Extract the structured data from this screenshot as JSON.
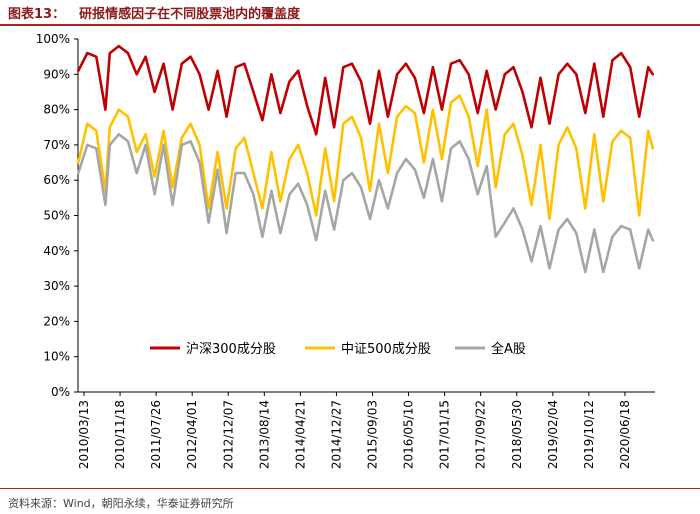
{
  "figure": {
    "label": "图表13：",
    "title": "研报情感因子在不同股票池内的覆盖度",
    "source": "资料来源：Wind，朝阳永续，华泰证券研究所"
  },
  "colors": {
    "hs300": "#C00000",
    "zz500": "#FFC000",
    "all": "#A6A6A6",
    "title": "#8B1A1A",
    "rule": "#B22222"
  },
  "chart_data": {
    "type": "line",
    "title": "研报情感因子在不同股票池内的覆盖度",
    "xlabel": "",
    "ylabel": "",
    "ylim": [
      0,
      100
    ],
    "yticks": [
      "0%",
      "10%",
      "20%",
      "30%",
      "40%",
      "50%",
      "60%",
      "70%",
      "80%",
      "90%",
      "100%"
    ],
    "xticks": [
      "2010/03/13",
      "2010/11/18",
      "2011/07/26",
      "2012/04/01",
      "2012/12/07",
      "2013/08/14",
      "2014/04/21",
      "2014/12/27",
      "2015/09/03",
      "2016/05/10",
      "2017/01/15",
      "2017/09/22",
      "2018/05/30",
      "2019/02/04",
      "2019/10/12",
      "2020/06/18"
    ],
    "legend_position": "bottom-center",
    "grid": false,
    "x_range": [
      "2010/03/13",
      "2020/11/30"
    ],
    "series": [
      {
        "name": "沪深300成分股",
        "points": [
          [
            "2010/03",
            91
          ],
          [
            "2010/05",
            96
          ],
          [
            "2010/07",
            95
          ],
          [
            "2010/09",
            80
          ],
          [
            "2010/10",
            96
          ],
          [
            "2010/12",
            98
          ],
          [
            "2011/02",
            96
          ],
          [
            "2011/04",
            90
          ],
          [
            "2011/06",
            95
          ],
          [
            "2011/08",
            85
          ],
          [
            "2011/10",
            93
          ],
          [
            "2011/12",
            80
          ],
          [
            "2012/02",
            93
          ],
          [
            "2012/04",
            95
          ],
          [
            "2012/06",
            90
          ],
          [
            "2012/08",
            80
          ],
          [
            "2012/10",
            91
          ],
          [
            "2012/12",
            78
          ],
          [
            "2013/02",
            92
          ],
          [
            "2013/04",
            93
          ],
          [
            "2013/06",
            85
          ],
          [
            "2013/08",
            77
          ],
          [
            "2013/10",
            90
          ],
          [
            "2013/12",
            79
          ],
          [
            "2014/02",
            88
          ],
          [
            "2014/04",
            91
          ],
          [
            "2014/06",
            81
          ],
          [
            "2014/08",
            73
          ],
          [
            "2014/10",
            89
          ],
          [
            "2014/12",
            75
          ],
          [
            "2015/02",
            92
          ],
          [
            "2015/04",
            93
          ],
          [
            "2015/06",
            88
          ],
          [
            "2015/08",
            76
          ],
          [
            "2015/10",
            91
          ],
          [
            "2015/12",
            78
          ],
          [
            "2016/02",
            90
          ],
          [
            "2016/04",
            93
          ],
          [
            "2016/06",
            89
          ],
          [
            "2016/08",
            79
          ],
          [
            "2016/10",
            92
          ],
          [
            "2016/12",
            80
          ],
          [
            "2017/02",
            93
          ],
          [
            "2017/04",
            94
          ],
          [
            "2017/06",
            90
          ],
          [
            "2017/08",
            79
          ],
          [
            "2017/10",
            91
          ],
          [
            "2017/12",
            80
          ],
          [
            "2018/02",
            90
          ],
          [
            "2018/04",
            92
          ],
          [
            "2018/06",
            85
          ],
          [
            "2018/08",
            75
          ],
          [
            "2018/10",
            89
          ],
          [
            "2018/12",
            76
          ],
          [
            "2019/02",
            90
          ],
          [
            "2019/04",
            93
          ],
          [
            "2019/06",
            90
          ],
          [
            "2019/08",
            79
          ],
          [
            "2019/10",
            93
          ],
          [
            "2019/12",
            78
          ],
          [
            "2020/02",
            94
          ],
          [
            "2020/04",
            96
          ],
          [
            "2020/06",
            92
          ],
          [
            "2020/08",
            78
          ],
          [
            "2020/10",
            92
          ],
          [
            "2020/11",
            90
          ]
        ]
      },
      {
        "name": "中证500成分股",
        "points": [
          [
            "2010/03",
            65
          ],
          [
            "2010/05",
            76
          ],
          [
            "2010/07",
            74
          ],
          [
            "2010/09",
            57
          ],
          [
            "2010/10",
            75
          ],
          [
            "2010/12",
            80
          ],
          [
            "2011/02",
            78
          ],
          [
            "2011/04",
            68
          ],
          [
            "2011/06",
            73
          ],
          [
            "2011/08",
            61
          ],
          [
            "2011/10",
            74
          ],
          [
            "2011/12",
            58
          ],
          [
            "2012/02",
            72
          ],
          [
            "2012/04",
            76
          ],
          [
            "2012/06",
            70
          ],
          [
            "2012/08",
            52
          ],
          [
            "2012/10",
            68
          ],
          [
            "2012/12",
            52
          ],
          [
            "2013/02",
            69
          ],
          [
            "2013/04",
            72
          ],
          [
            "2013/06",
            62
          ],
          [
            "2013/08",
            52
          ],
          [
            "2013/10",
            68
          ],
          [
            "2013/12",
            54
          ],
          [
            "2014/02",
            66
          ],
          [
            "2014/04",
            70
          ],
          [
            "2014/06",
            62
          ],
          [
            "2014/08",
            50
          ],
          [
            "2014/10",
            69
          ],
          [
            "2014/12",
            54
          ],
          [
            "2015/02",
            76
          ],
          [
            "2015/04",
            78
          ],
          [
            "2015/06",
            72
          ],
          [
            "2015/08",
            57
          ],
          [
            "2015/10",
            76
          ],
          [
            "2015/12",
            62
          ],
          [
            "2016/02",
            78
          ],
          [
            "2016/04",
            81
          ],
          [
            "2016/06",
            79
          ],
          [
            "2016/08",
            65
          ],
          [
            "2016/10",
            80
          ],
          [
            "2016/12",
            66
          ],
          [
            "2017/02",
            82
          ],
          [
            "2017/04",
            84
          ],
          [
            "2017/06",
            78
          ],
          [
            "2017/08",
            64
          ],
          [
            "2017/10",
            80
          ],
          [
            "2017/12",
            58
          ],
          [
            "2018/02",
            73
          ],
          [
            "2018/04",
            76
          ],
          [
            "2018/06",
            67
          ],
          [
            "2018/08",
            53
          ],
          [
            "2018/10",
            70
          ],
          [
            "2018/12",
            49
          ],
          [
            "2019/02",
            70
          ],
          [
            "2019/04",
            75
          ],
          [
            "2019/06",
            69
          ],
          [
            "2019/08",
            52
          ],
          [
            "2019/10",
            73
          ],
          [
            "2019/12",
            54
          ],
          [
            "2020/02",
            71
          ],
          [
            "2020/04",
            74
          ],
          [
            "2020/06",
            72
          ],
          [
            "2020/08",
            50
          ],
          [
            "2020/10",
            74
          ],
          [
            "2020/11",
            69
          ]
        ]
      },
      {
        "name": "全A股",
        "points": [
          [
            "2010/03",
            62
          ],
          [
            "2010/05",
            70
          ],
          [
            "2010/07",
            69
          ],
          [
            "2010/09",
            53
          ],
          [
            "2010/10",
            70
          ],
          [
            "2010/12",
            73
          ],
          [
            "2011/02",
            71
          ],
          [
            "2011/04",
            62
          ],
          [
            "2011/06",
            70
          ],
          [
            "2011/08",
            56
          ],
          [
            "2011/10",
            70
          ],
          [
            "2011/12",
            53
          ],
          [
            "2012/02",
            70
          ],
          [
            "2012/04",
            71
          ],
          [
            "2012/06",
            65
          ],
          [
            "2012/08",
            48
          ],
          [
            "2012/10",
            63
          ],
          [
            "2012/12",
            45
          ],
          [
            "2013/02",
            62
          ],
          [
            "2013/04",
            62
          ],
          [
            "2013/06",
            56
          ],
          [
            "2013/08",
            44
          ],
          [
            "2013/10",
            57
          ],
          [
            "2013/12",
            45
          ],
          [
            "2014/02",
            56
          ],
          [
            "2014/04",
            59
          ],
          [
            "2014/06",
            53
          ],
          [
            "2014/08",
            43
          ],
          [
            "2014/10",
            57
          ],
          [
            "2014/12",
            46
          ],
          [
            "2015/02",
            60
          ],
          [
            "2015/04",
            62
          ],
          [
            "2015/06",
            58
          ],
          [
            "2015/08",
            49
          ],
          [
            "2015/10",
            60
          ],
          [
            "2015/12",
            52
          ],
          [
            "2016/02",
            62
          ],
          [
            "2016/04",
            66
          ],
          [
            "2016/06",
            63
          ],
          [
            "2016/08",
            55
          ],
          [
            "2016/10",
            66
          ],
          [
            "2016/12",
            54
          ],
          [
            "2017/02",
            69
          ],
          [
            "2017/04",
            71
          ],
          [
            "2017/06",
            66
          ],
          [
            "2017/08",
            56
          ],
          [
            "2017/10",
            64
          ],
          [
            "2017/12",
            44
          ],
          [
            "2018/02",
            48
          ],
          [
            "2018/04",
            52
          ],
          [
            "2018/06",
            46
          ],
          [
            "2018/08",
            37
          ],
          [
            "2018/10",
            47
          ],
          [
            "2018/12",
            35
          ],
          [
            "2019/02",
            46
          ],
          [
            "2019/04",
            49
          ],
          [
            "2019/06",
            45
          ],
          [
            "2019/08",
            34
          ],
          [
            "2019/10",
            46
          ],
          [
            "2019/12",
            34
          ],
          [
            "2020/02",
            44
          ],
          [
            "2020/04",
            47
          ],
          [
            "2020/06",
            46
          ],
          [
            "2020/08",
            35
          ],
          [
            "2020/10",
            46
          ],
          [
            "2020/11",
            43
          ]
        ]
      }
    ]
  }
}
